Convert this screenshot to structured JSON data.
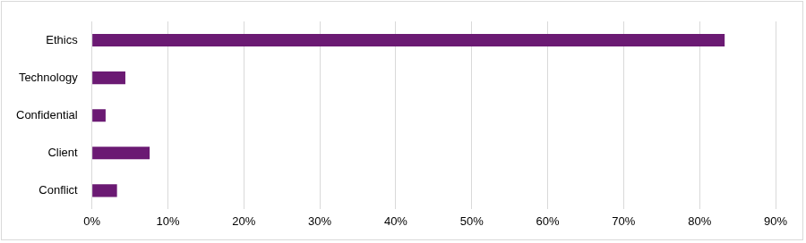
{
  "chart_data": {
    "type": "bar",
    "orientation": "horizontal",
    "categories": [
      "Ethics",
      "Technology",
      "Confidential",
      "Client",
      "Conflict"
    ],
    "values": [
      83.3,
      4.4,
      1.8,
      7.6,
      3.3
    ],
    "color": "#6b1a73",
    "xlim": [
      0,
      90
    ],
    "xticks": [
      {
        "value": 0,
        "label": "0%"
      },
      {
        "value": 10,
        "label": "10%"
      },
      {
        "value": 20,
        "label": "20%"
      },
      {
        "value": 30,
        "label": "30%"
      },
      {
        "value": 40,
        "label": "40%"
      },
      {
        "value": 50,
        "label": "50%"
      },
      {
        "value": 60,
        "label": "60%"
      },
      {
        "value": 70,
        "label": "70%"
      },
      {
        "value": 80,
        "label": "80%"
      },
      {
        "value": 90,
        "label": "90%"
      }
    ],
    "grid": true
  }
}
